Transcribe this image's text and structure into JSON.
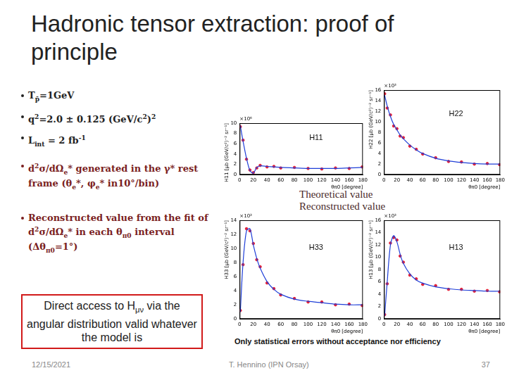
{
  "title": "Hadronic tensor extraction: proof of principle",
  "bullets": [
    [
      "T",
      {
        "sub": "p̄"
      },
      "=1GeV"
    ],
    [
      "q",
      {
        "sup": "2"
      },
      "=2.0 ± 0.125 (GeV/c",
      {
        "sup": "2"
      },
      ")",
      {
        "sup": "2"
      }
    ],
    [
      "L",
      {
        "sub": "int"
      },
      " = 2 fb",
      {
        "sup": "-1"
      }
    ],
    [
      "d",
      {
        "sup": "2"
      },
      "σ/dΩ",
      {
        "sub": "e"
      },
      "* generated in the γ* rest frame (θ",
      {
        "sub": "e"
      },
      "*, φ",
      {
        "sub": "e"
      },
      "* in10°/bin)"
    ],
    [
      "Reconstructed value from the fit  of d",
      {
        "sup": "2"
      },
      "σ/dΩ",
      {
        "sub": "e"
      },
      "* in each θ",
      {
        "sub": "π0"
      },
      " interval (Δθ",
      {
        "sub": "π0"
      },
      "=1°)"
    ]
  ],
  "box": [
    "Direct access to H",
    {
      "sub": "μν"
    },
    " via the angular distribution valid whatever the model is"
  ],
  "note": "Only statistical errors without acceptance nor efficiency",
  "footer": {
    "date": "12/15/2021",
    "author": "T. Hennino  (IPN Orsay)",
    "page": "37"
  },
  "chart_data": [
    {
      "type": "line",
      "title": "H11",
      "annotations": [
        "×10⁶"
      ],
      "x_label": "θπ0 [degree]",
      "y_label": "H11 [μb (GeV/c²)⁻² sr⁻¹]",
      "x": [
        1,
        5,
        10,
        15,
        20,
        25,
        30,
        40,
        50,
        60,
        80,
        100,
        120,
        140,
        160,
        179
      ],
      "xlim": [
        0,
        180
      ],
      "xticks": [
        0,
        20,
        40,
        60,
        80,
        100,
        120,
        140,
        160,
        180
      ],
      "ylim": [
        0,
        10
      ],
      "yticks": [
        0,
        2,
        4,
        6,
        8,
        10
      ],
      "grid": false,
      "series": [
        {
          "name": "Theoretical value",
          "type": "line",
          "line_style": "solid",
          "color": "#1f3fd8",
          "values": [
            9.5,
            6.5,
            3.2,
            0.8,
            0.3,
            1.4,
            1.7,
            1.6,
            1.5,
            1.4,
            1.3,
            1.2,
            1.2,
            1.2,
            1.3,
            1.4
          ]
        },
        {
          "name": "Reconstructed value",
          "type": "scatter",
          "marker": "circle",
          "color": "#e0203a",
          "values": [
            9.3,
            6.7,
            3.0,
            0.9,
            0.4,
            1.3,
            1.8,
            1.5,
            1.6,
            1.3,
            1.4,
            1.2,
            1.1,
            1.3,
            1.2,
            1.5
          ]
        }
      ]
    },
    {
      "type": "line",
      "title": "H22",
      "annotations": [
        "×10³"
      ],
      "x_label": "θπ0 [degree]",
      "y_label": "H22 [μb (GeV/c²)⁻² sr⁻¹]",
      "x": [
        1,
        5,
        10,
        15,
        20,
        25,
        30,
        40,
        50,
        60,
        80,
        100,
        120,
        140,
        160,
        179
      ],
      "xlim": [
        0,
        180
      ],
      "xticks": [
        0,
        20,
        40,
        60,
        80,
        100,
        120,
        140,
        160,
        180
      ],
      "ylim": [
        0,
        16
      ],
      "yticks": [
        0,
        2,
        4,
        6,
        8,
        10,
        12,
        14,
        16
      ],
      "grid": false,
      "series": [
        {
          "name": "Theoretical value",
          "type": "line",
          "line_style": "solid",
          "color": "#1f3fd8",
          "values": [
            15,
            13,
            11,
            9.5,
            8.5,
            7.5,
            6.8,
            5.6,
            4.7,
            4.0,
            3.1,
            2.6,
            2.3,
            2.1,
            2.0,
            2.0
          ]
        },
        {
          "name": "Reconstructed value",
          "type": "scatter",
          "marker": "circle",
          "color": "#e0203a",
          "values": [
            15.3,
            12.6,
            11.3,
            9.2,
            8.7,
            7.3,
            7.0,
            5.4,
            4.8,
            3.9,
            3.2,
            2.5,
            2.4,
            2.0,
            2.1,
            1.9
          ]
        }
      ]
    },
    {
      "type": "line",
      "title": "H33",
      "annotations": [
        "×10³"
      ],
      "x_label": "θπ0 [degree]",
      "y_label": "H33 [μb (GeV/c²)⁻² sr⁻¹]",
      "x": [
        1,
        5,
        10,
        15,
        20,
        25,
        30,
        40,
        50,
        60,
        80,
        100,
        120,
        140,
        160,
        179
      ],
      "xlim": [
        0,
        180
      ],
      "xticks": [
        0,
        20,
        40,
        60,
        80,
        100,
        120,
        140,
        160,
        180
      ],
      "ylim": [
        0,
        14
      ],
      "yticks": [
        0,
        2,
        4,
        6,
        8,
        10,
        12,
        14
      ],
      "grid": false,
      "series": [
        {
          "name": "Theoretical value",
          "type": "line",
          "line_style": "solid",
          "color": "#1f3fd8",
          "values": [
            1.0,
            8.0,
            12.5,
            12.8,
            10.5,
            8.6,
            7.2,
            5.3,
            4.2,
            3.5,
            2.8,
            2.5,
            2.3,
            2.1,
            2.0,
            2.0
          ]
        },
        {
          "name": "Reconstructed value",
          "type": "scatter",
          "marker": "circle",
          "color": "#e0203a",
          "values": [
            1.2,
            7.7,
            12.8,
            12.5,
            10.7,
            8.4,
            7.4,
            5.1,
            4.3,
            3.4,
            2.9,
            2.4,
            2.4,
            2.0,
            2.1,
            1.9
          ]
        }
      ]
    },
    {
      "type": "line",
      "title": "H13",
      "annotations": [
        "×10³"
      ],
      "x_label": "θπ0 [degree]",
      "y_label": "H13 [μb (GeV/c²)⁻² sr⁻¹]",
      "x": [
        1,
        5,
        10,
        15,
        20,
        25,
        30,
        40,
        50,
        60,
        80,
        100,
        120,
        140,
        160,
        179
      ],
      "xlim": [
        0,
        180
      ],
      "xticks": [
        0,
        20,
        40,
        60,
        80,
        100,
        120,
        140,
        160,
        180
      ],
      "ylim": [
        0,
        16
      ],
      "yticks": [
        0,
        2,
        4,
        6,
        8,
        10,
        12,
        14,
        16
      ],
      "grid": false,
      "series": [
        {
          "name": "Theoretical value",
          "type": "line",
          "line_style": "solid",
          "color": "#1f3fd8",
          "values": [
            0.5,
            6.0,
            12.0,
            13.5,
            12.5,
            10.5,
            9.0,
            7.3,
            6.3,
            5.8,
            5.2,
            4.9,
            4.7,
            4.6,
            4.5,
            4.5
          ]
        },
        {
          "name": "Reconstructed value",
          "type": "scatter",
          "marker": "circle",
          "color": "#e0203a",
          "values": [
            0.7,
            5.7,
            12.3,
            13.2,
            12.8,
            10.2,
            9.2,
            7.1,
            6.5,
            5.6,
            5.4,
            4.8,
            4.8,
            4.5,
            4.6,
            4.4
          ]
        }
      ]
    }
  ]
}
